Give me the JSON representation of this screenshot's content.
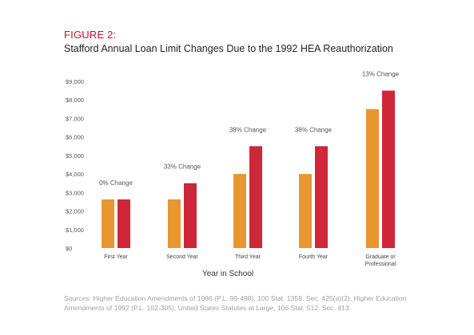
{
  "figure_label": "FIGURE 2:",
  "title": "Stafford Annual Loan Limit Changes Due to the 1992 HEA Reauthorization",
  "source": "Sources: Higher Education Amendments of 1986 (P.L. 99-498), 100 Stat. 1359. Sec. 425(a)(2); Higher Education Amendments of 1992 (P.L. 102-305), United States Statutes at Large, 106 Stat. 512. Sec. 413.",
  "colors": {
    "before": "#e8962e",
    "after": "#d0263a",
    "accent": "#c8102e"
  },
  "chart_data": {
    "type": "bar",
    "title": "Stafford Annual Loan Limit Changes Due to the 1992 HEA Reauthorization",
    "xlabel": "Year in School",
    "ylabel": "",
    "ylim": [
      0,
      9000
    ],
    "yticks": [
      "$0",
      "$1,000",
      "$2,000",
      "$3,000",
      "$4,000",
      "$5,000",
      "$6,000",
      "$7,000",
      "$8,000",
      "$9,000"
    ],
    "grid": false,
    "categories": [
      [
        "First Year"
      ],
      [
        "Second Year"
      ],
      [
        "Third Year"
      ],
      [
        "Fourth Year"
      ],
      [
        "Graduate or",
        "Professional"
      ]
    ],
    "series": [
      {
        "values": [
          2625,
          2625,
          4000,
          4000,
          7500
        ],
        "color": "#e8962e"
      },
      {
        "values": [
          2625,
          3500,
          5500,
          5500,
          8500
        ],
        "color": "#d0263a"
      }
    ],
    "annotations": [
      "0% Change",
      "33% Change",
      "38% Change",
      "38% Change",
      "13% Change"
    ]
  }
}
